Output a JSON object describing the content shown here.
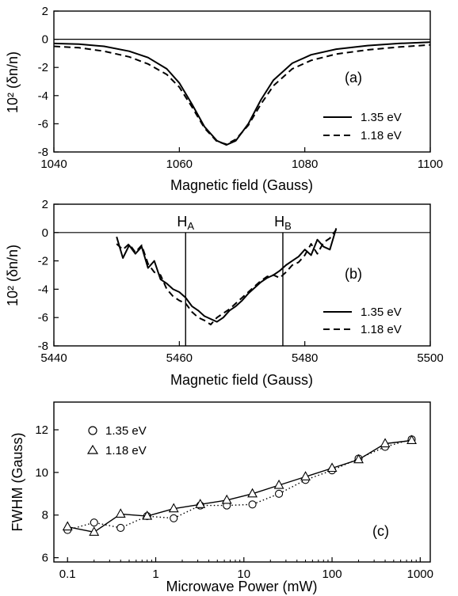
{
  "chart_data": [
    {
      "type": "line",
      "panel_label": "(a)",
      "xlabel": "Magnetic field (Gauss)",
      "ylabel": "10² (δn/n)",
      "xlim": [
        1040,
        1100
      ],
      "ylim": [
        -8,
        2
      ],
      "xticks": [
        1040,
        1060,
        1080,
        1100
      ],
      "yticks": [
        2,
        0,
        -2,
        -4,
        -6,
        -8
      ],
      "legend_placement": "bottom-right",
      "series": [
        {
          "name": "1.35 eV",
          "style": "solid",
          "x": [
            1040,
            1044,
            1048,
            1052,
            1055,
            1058,
            1060,
            1062,
            1064,
            1066,
            1067.5,
            1069,
            1071,
            1073,
            1075,
            1078,
            1081,
            1085,
            1090,
            1095,
            1100
          ],
          "y": [
            -0.3,
            -0.35,
            -0.5,
            -0.85,
            -1.3,
            -2.1,
            -3.1,
            -4.6,
            -6.2,
            -7.2,
            -7.5,
            -7.2,
            -6.0,
            -4.3,
            -2.9,
            -1.7,
            -1.1,
            -0.7,
            -0.45,
            -0.3,
            -0.2
          ]
        },
        {
          "name": "1.18 eV",
          "style": "dashed",
          "x": [
            1040,
            1044,
            1048,
            1052,
            1055,
            1058,
            1060,
            1062,
            1064,
            1066,
            1067.5,
            1069,
            1071,
            1073,
            1075,
            1078,
            1081,
            1085,
            1090,
            1095,
            1100
          ],
          "y": [
            -0.5,
            -0.6,
            -0.85,
            -1.25,
            -1.75,
            -2.5,
            -3.4,
            -4.8,
            -6.3,
            -7.25,
            -7.45,
            -7.1,
            -6.1,
            -4.6,
            -3.3,
            -2.1,
            -1.5,
            -1.05,
            -0.75,
            -0.55,
            -0.4
          ]
        }
      ]
    },
    {
      "type": "line",
      "panel_label": "(b)",
      "xlabel": "Magnetic field (Gauss)",
      "ylabel": "10² (δn/n)",
      "xlim": [
        5440,
        5500
      ],
      "ylim": [
        -8,
        2
      ],
      "xticks": [
        5440,
        5460,
        5480,
        5500
      ],
      "yticks": [
        2,
        0,
        -2,
        -4,
        -6,
        -8
      ],
      "legend_placement": "bottom-right",
      "markers": [
        {
          "label": "H",
          "sub": "A",
          "x": 5461
        },
        {
          "label": "H",
          "sub": "B",
          "x": 5476.5
        }
      ],
      "series": [
        {
          "name": "1.35 eV",
          "style": "solid",
          "x": [
            5450,
            5451,
            5452,
            5453,
            5454,
            5455,
            5456,
            5457,
            5458,
            5459,
            5460,
            5461,
            5462,
            5463,
            5464,
            5465,
            5466,
            5467,
            5468,
            5469,
            5470,
            5471,
            5472,
            5473,
            5474,
            5475,
            5476,
            5477,
            5478,
            5479,
            5480,
            5481,
            5482,
            5483,
            5484,
            5485
          ],
          "y": [
            -0.3,
            -1.8,
            -0.9,
            -1.5,
            -1.0,
            -2.5,
            -2.0,
            -3.3,
            -3.6,
            -4.0,
            -4.2,
            -4.6,
            -5.2,
            -5.5,
            -5.9,
            -6.1,
            -6.3,
            -6.0,
            -5.5,
            -5.2,
            -4.8,
            -4.3,
            -3.9,
            -3.5,
            -3.2,
            -3.0,
            -2.7,
            -2.3,
            -2.0,
            -1.7,
            -1.2,
            -1.6,
            -0.5,
            -1.0,
            -1.2,
            0.3
          ]
        },
        {
          "name": "1.18 eV",
          "style": "dashed",
          "x": [
            5450,
            5451,
            5452,
            5453,
            5454,
            5455,
            5456,
            5457,
            5458,
            5459,
            5460,
            5461,
            5462,
            5463,
            5464,
            5465,
            5466,
            5467,
            5468,
            5469,
            5470,
            5471,
            5472,
            5473,
            5474,
            5475,
            5476,
            5477,
            5478,
            5479,
            5480,
            5481,
            5482,
            5483,
            5484,
            5485
          ],
          "y": [
            -0.8,
            -1.2,
            -0.8,
            -1.4,
            -0.9,
            -2.2,
            -2.8,
            -3.0,
            -4.0,
            -4.5,
            -4.8,
            -5.0,
            -5.6,
            -6.0,
            -6.2,
            -6.5,
            -6.0,
            -5.7,
            -5.4,
            -5.0,
            -4.6,
            -4.2,
            -3.8,
            -3.4,
            -3.1,
            -3.0,
            -3.2,
            -2.8,
            -2.3,
            -2.1,
            -1.6,
            -0.8,
            -1.5,
            -0.7,
            -0.4,
            0.2
          ]
        }
      ]
    },
    {
      "type": "line",
      "panel_label": "(c)",
      "xlabel": "Microwave Power (mW)",
      "ylabel": "FWHM (Gauss)",
      "xscale": "log",
      "xlim": [
        0.07,
        1300
      ],
      "ylim": [
        5.8,
        13.3
      ],
      "xticks": [
        0.1,
        1,
        10,
        100,
        1000
      ],
      "xtick_labels": [
        "0.1",
        "1",
        "10",
        "100",
        "1000"
      ],
      "yticks": [
        6,
        8,
        10,
        12
      ],
      "legend_placement": "top-left",
      "series": [
        {
          "name": "1.35 eV",
          "marker": "circle",
          "style": "dotted",
          "x": [
            0.1,
            0.2,
            0.4,
            0.8,
            1.6,
            3.2,
            6.4,
            12.5,
            25,
            50,
            100,
            200,
            400,
            800
          ],
          "y": [
            7.3,
            7.65,
            7.4,
            7.95,
            7.85,
            8.45,
            8.45,
            8.5,
            9.0,
            9.65,
            10.1,
            10.65,
            11.2,
            11.55
          ]
        },
        {
          "name": "1.18 eV",
          "marker": "triangle",
          "style": "solid",
          "x": [
            0.1,
            0.2,
            0.4,
            0.8,
            1.6,
            3.2,
            6.4,
            12.5,
            25,
            50,
            100,
            200,
            400,
            800
          ],
          "y": [
            7.45,
            7.2,
            8.05,
            7.95,
            8.3,
            8.5,
            8.7,
            9.0,
            9.4,
            9.8,
            10.2,
            10.6,
            11.35,
            11.5
          ]
        }
      ]
    }
  ]
}
